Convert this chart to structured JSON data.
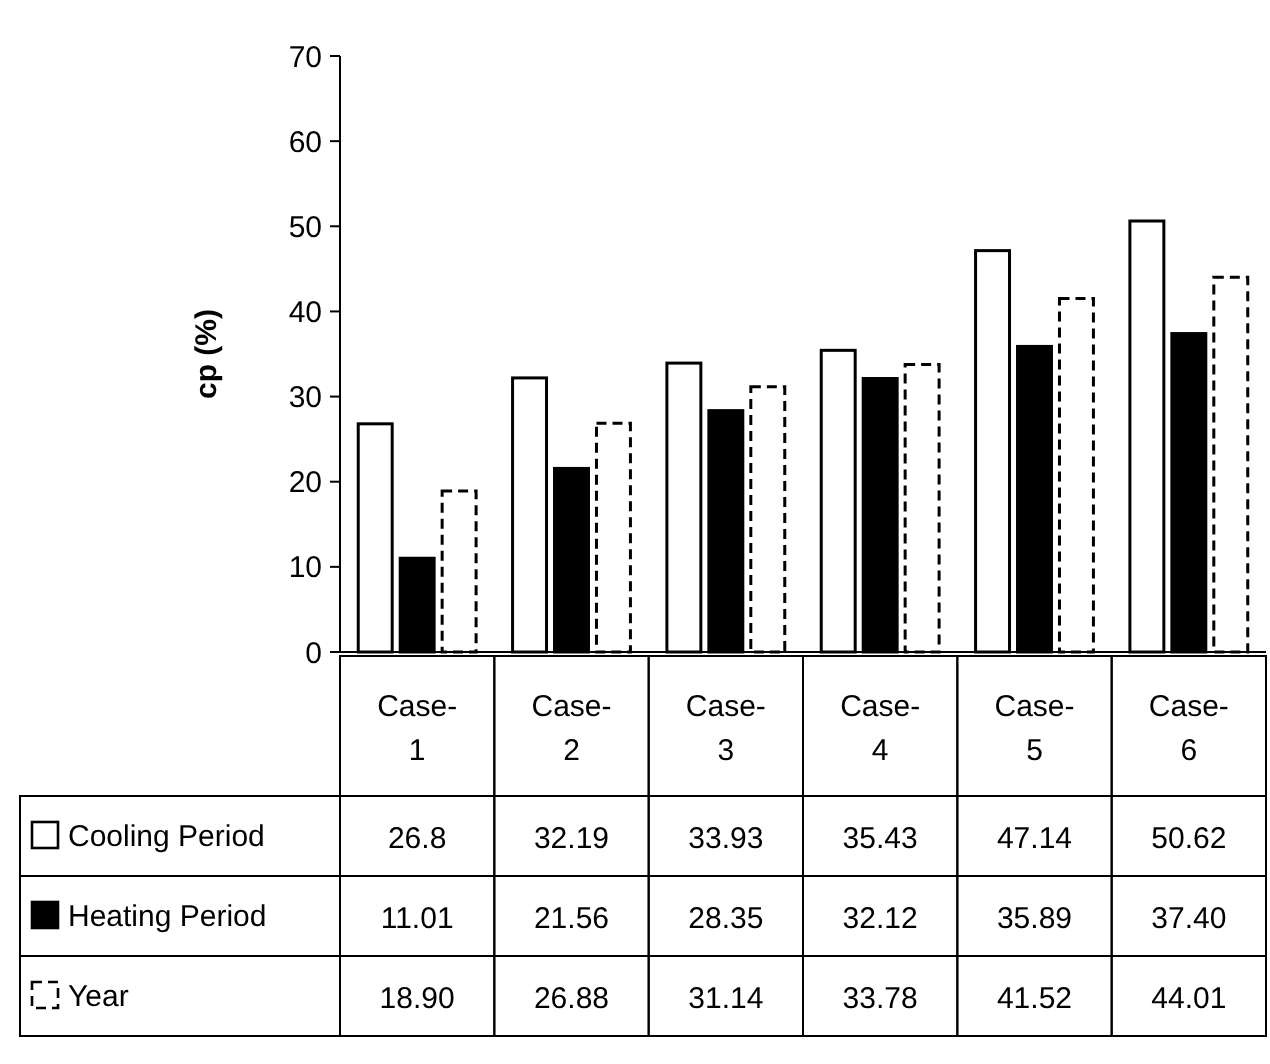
{
  "chart_data": {
    "type": "bar",
    "ylabel": "cp (%)",
    "categories": [
      "Case-1",
      "Case-2",
      "Case-3",
      "Case-4",
      "Case-5",
      "Case-6"
    ],
    "ylim": [
      0,
      70
    ],
    "yticks": [
      0,
      10,
      20,
      30,
      40,
      50,
      60,
      70
    ],
    "legend": "bottom",
    "grid": false,
    "series": [
      {
        "name": "Cooling Period",
        "color": "#ffffff",
        "values": [
          26.8,
          32.19,
          33.93,
          35.43,
          47.14,
          50.62
        ],
        "value_labels": [
          "26.8",
          "32.19",
          "33.93",
          "35.43",
          "47.14",
          "50.62"
        ]
      },
      {
        "name": "Heating Period",
        "color": "#000000",
        "values": [
          11.01,
          21.56,
          28.35,
          32.12,
          35.89,
          37.4
        ],
        "value_labels": [
          "11.01",
          "21.56",
          "28.35",
          "32.12",
          "35.89",
          "37.40"
        ]
      },
      {
        "name": "Year",
        "color": "#ffffff",
        "line_style": "dashed",
        "values": [
          18.9,
          26.88,
          31.14,
          33.78,
          41.52,
          44.01
        ],
        "value_labels": [
          "18.90",
          "26.88",
          "31.14",
          "33.78",
          "41.52",
          "44.01"
        ]
      }
    ]
  }
}
